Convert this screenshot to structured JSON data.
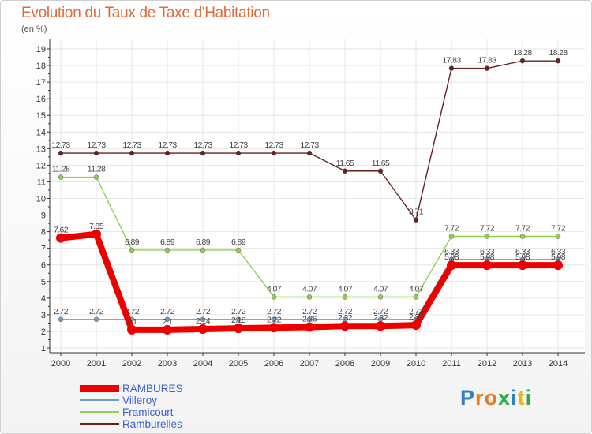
{
  "title": "Evolution du Taux de Taxe d'Habitation",
  "unit": "(en %)",
  "brand": {
    "letters": [
      "P",
      "r",
      "o",
      "x",
      "i",
      "t",
      "i"
    ],
    "colors": [
      "#2d7fc7",
      "#e87b1e",
      "#e87b1e",
      "#2fa84f",
      "#2d7fc7",
      "#e8b91e",
      "#2fa84f"
    ]
  },
  "chart_data": {
    "type": "line",
    "title": "Evolution du Taux de Taxe d'Habitation",
    "ylabel": "(en %)",
    "xlabel": "",
    "x": [
      "2000",
      "2001",
      "2002",
      "2003",
      "2004",
      "2005",
      "2006",
      "2007",
      "2008",
      "2009",
      "2010",
      "2011",
      "2012",
      "2013",
      "2014"
    ],
    "ylim": [
      1,
      19
    ],
    "yticks": [
      1,
      2,
      3,
      4,
      5,
      6,
      7,
      8,
      9,
      10,
      11,
      12,
      13,
      14,
      15,
      16,
      17,
      18,
      19
    ],
    "series": [
      {
        "name": "Ramburelles",
        "color": "#6b1f1f",
        "values": [
          12.73,
          12.73,
          12.73,
          12.73,
          12.73,
          12.73,
          12.73,
          12.73,
          11.65,
          11.65,
          8.71,
          17.83,
          17.83,
          18.28,
          18.28
        ],
        "labels": [
          "12.73",
          "12.73",
          "12.73",
          "12.73",
          "12.73",
          "12.73",
          "12.73",
          "12.73",
          "11.65",
          "11.65",
          "8.71",
          "17.83",
          "17.83",
          "18.28",
          "18.28"
        ]
      },
      {
        "name": "Framicourt",
        "color": "#8fd14f",
        "values": [
          11.28,
          11.28,
          6.89,
          6.89,
          6.89,
          6.89,
          4.07,
          4.07,
          4.07,
          4.07,
          4.07,
          7.72,
          7.72,
          7.72,
          7.72
        ],
        "labels": [
          "11.28",
          "11.28",
          "6.89",
          "6.89",
          "6.89",
          "6.89",
          "4.07",
          "4.07",
          "4.07",
          "4.07",
          "4.07",
          "7.72",
          "7.72",
          "7.72",
          "7.72"
        ]
      },
      {
        "name": "Villeroy",
        "color": "#6a9fd0",
        "values": [
          2.72,
          2.72,
          2.72,
          2.72,
          2.72,
          2.72,
          2.72,
          2.72,
          2.72,
          2.72,
          2.72,
          6.33,
          6.33,
          6.33,
          6.33
        ],
        "labels": [
          "2.72",
          "2.72",
          "2.72",
          "2.72",
          "2.72",
          "2.72",
          "2.72",
          "2.72",
          "2.72",
          "2.72",
          "2.72",
          "6.33",
          "6.33",
          "6.33",
          "6.33"
        ]
      },
      {
        "name": "RAMBURES",
        "color": "#ee0000",
        "values": [
          7.62,
          7.85,
          2.1,
          2.1,
          2.14,
          2.18,
          2.22,
          2.26,
          2.32,
          2.32,
          2.37,
          5.98,
          5.98,
          5.98,
          5.98
        ],
        "labels": [
          "7.62",
          "7.85",
          "2.1",
          "2.1",
          "2.14",
          "2.18",
          "2.22",
          "2.26",
          "2.32",
          "2.32",
          "2.37",
          "5.98",
          "5.98",
          "5.98",
          "5.98"
        ]
      }
    ],
    "legend_order": [
      "RAMBURES",
      "Villeroy",
      "Framicourt",
      "Ramburelles"
    ],
    "legend_position": "bottom-left"
  }
}
